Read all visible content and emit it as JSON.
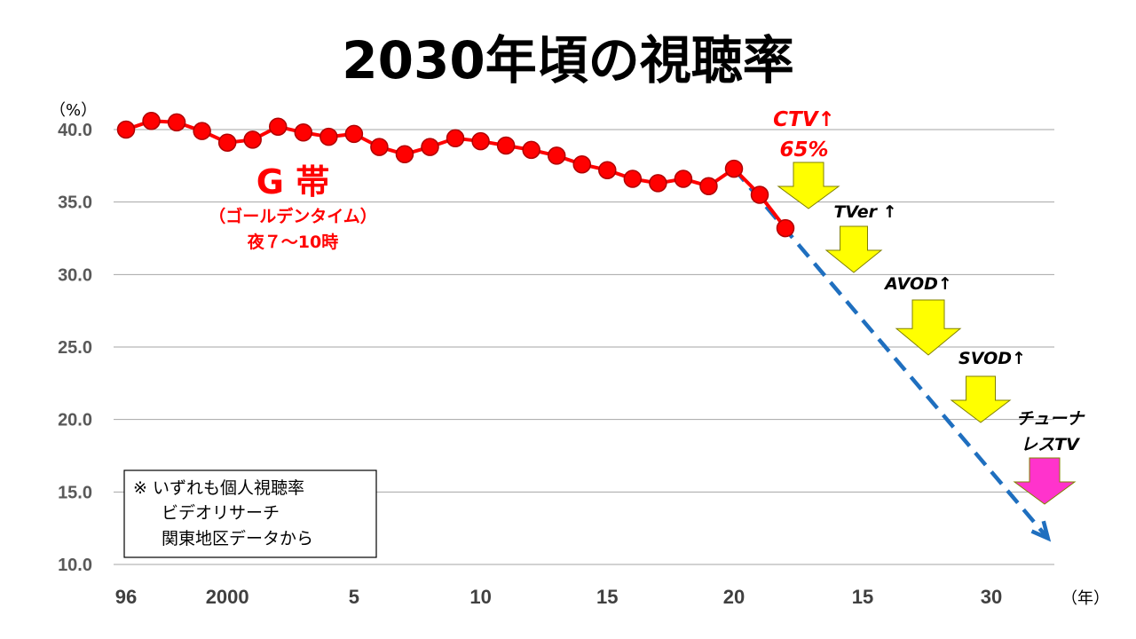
{
  "colors": {
    "series_line": "#ff0000",
    "series_marker_stroke": "#b00000",
    "trend_line": "#1f6fbf",
    "arrow_yellow": "#ffff00",
    "arrow_magenta": "#ff33cc",
    "gridline": "#a6a6a6",
    "annotation_red": "#ff0000"
  },
  "chart_data": {
    "type": "line",
    "title": "2030年頃の視聴率",
    "y_unit_label": "（%）",
    "x_unit_label": "（年）",
    "ylim": [
      10,
      40
    ],
    "y_ticks": [
      "40.0",
      "35.0",
      "30.0",
      "25.0",
      "20.0",
      "15.0",
      "10.0"
    ],
    "y_tick_values": [
      40,
      35,
      30,
      25,
      20,
      15,
      10
    ],
    "grid": true,
    "x_ticks": [
      {
        "label": "96",
        "year": 1996
      },
      {
        "label": "2000",
        "year": 2000
      },
      {
        "label": "5",
        "year": 2005
      },
      {
        "label": "10",
        "year": 2010
      },
      {
        "label": "15",
        "year": 2015
      },
      {
        "label": "20",
        "year": 2020
      },
      {
        "label": "15",
        "year": 2025
      },
      {
        "label": "30",
        "year": 2030
      }
    ],
    "series": [
      {
        "name": "G 帯",
        "subtitle_1": "（ゴールデンタイム）",
        "subtitle_2": "夜７～10時",
        "x": [
          1996,
          1997,
          1998,
          1999,
          2000,
          2001,
          2002,
          2003,
          2004,
          2005,
          2006,
          2007,
          2008,
          2009,
          2010,
          2011,
          2012,
          2013,
          2014,
          2015,
          2016,
          2017,
          2018,
          2019,
          2020,
          2021,
          2022
        ],
        "values": [
          40.0,
          40.6,
          40.5,
          39.9,
          39.1,
          39.3,
          40.2,
          39.8,
          39.5,
          39.7,
          38.8,
          38.3,
          38.8,
          39.4,
          39.2,
          38.9,
          38.6,
          38.2,
          37.6,
          37.2,
          36.6,
          36.3,
          36.6,
          36.1,
          37.3,
          35.5,
          33.2
        ]
      }
    ],
    "trend": {
      "style": "dashed-arrow",
      "from": {
        "year": 2020,
        "value": 37.3
      },
      "to": {
        "year": 2032.2,
        "value": 11.8
      }
    },
    "annotations": [
      {
        "id": "ctv",
        "line1": "CTV↑",
        "line2": "65%",
        "color": "red"
      },
      {
        "id": "tver",
        "line1": "TVer ↑",
        "color": "black"
      },
      {
        "id": "avod",
        "line1": "AVOD↑",
        "color": "black"
      },
      {
        "id": "svod",
        "line1": "SVOD↑",
        "color": "black"
      },
      {
        "id": "tunerless",
        "line1": "チューナ",
        "line2": "レスTV",
        "color": "black"
      }
    ],
    "note": {
      "line1": "※ いずれも個人視聴率",
      "line2": "ビデオリサーチ",
      "line3": "関東地区データから"
    }
  }
}
